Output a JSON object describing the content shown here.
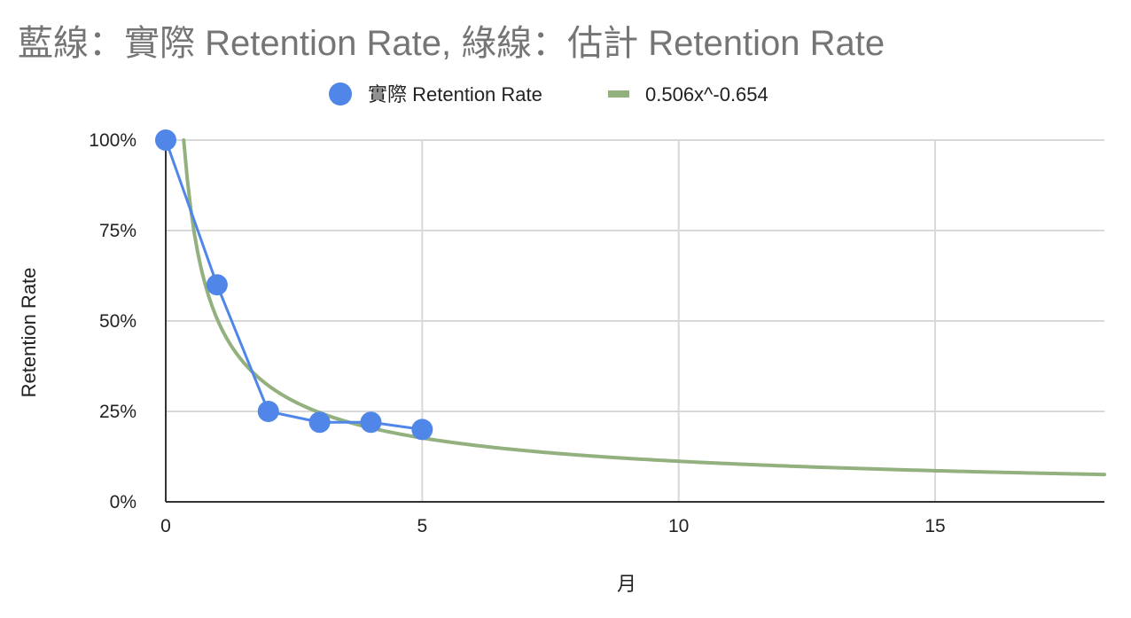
{
  "chart_data": {
    "type": "scatter",
    "title": "藍線：實際 Retention Rate, 綠線：估計 Retention Rate",
    "xlabel": "月",
    "ylabel": "Retention Rate",
    "xlim": [
      0,
      18.3
    ],
    "ylim": [
      0,
      1
    ],
    "x_ticks": [
      0,
      5,
      10,
      15
    ],
    "y_ticks": [
      {
        "value": 0,
        "label": "0%"
      },
      {
        "value": 0.25,
        "label": "25%"
      },
      {
        "value": 0.5,
        "label": "50%"
      },
      {
        "value": 0.75,
        "label": "75%"
      },
      {
        "value": 1,
        "label": "100%"
      }
    ],
    "grid": true,
    "legend_position": "top",
    "series": [
      {
        "name": "實際 Retention Rate",
        "kind": "line-with-markers",
        "color": "#4f86e8",
        "x": [
          0,
          1,
          2,
          3,
          4,
          5
        ],
        "y": [
          1.0,
          0.6,
          0.25,
          0.22,
          0.22,
          0.2
        ]
      },
      {
        "name": "0.506x^-0.654",
        "kind": "trendline",
        "color": "#93b07f",
        "coefficient": 0.506,
        "exponent": -0.654,
        "x_start": 0.35,
        "x_end": 18.3
      }
    ]
  }
}
